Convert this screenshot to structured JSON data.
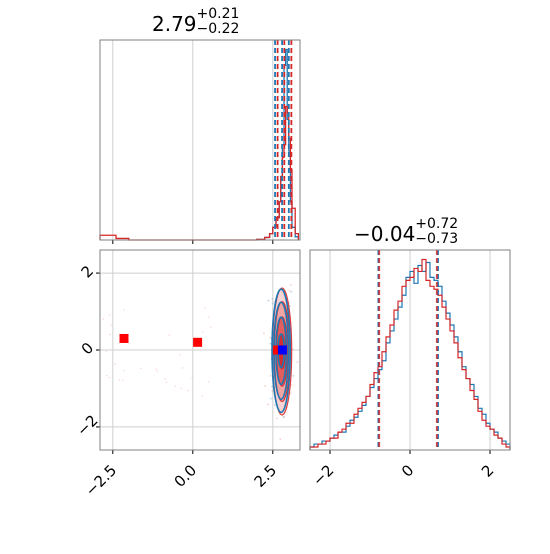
{
  "chart_data": [
    {
      "panel": "marginal-1",
      "type": "histogram",
      "title": "2.79",
      "title_sup": "+0.21",
      "title_sub": "−0.22",
      "xlim": [
        -2.9,
        3.35
      ],
      "x_ticks": [
        -2.5,
        0.0,
        2.5
      ],
      "quantiles_series1": [
        2.57,
        2.79,
        3.0
      ],
      "quantiles_series2": [
        2.65,
        2.86,
        3.08
      ],
      "series": [
        {
          "color": "#1f77b4",
          "bin_edges": [
            2.0,
            2.25,
            2.4,
            2.5,
            2.6,
            2.7,
            2.75,
            2.8,
            2.85,
            2.9,
            2.95,
            3.0,
            3.05,
            3.1,
            3.2,
            3.3
          ],
          "counts": [
            0.2,
            0.8,
            2,
            4,
            7,
            12,
            20,
            30,
            55,
            60,
            38,
            28,
            12,
            4,
            1
          ]
        },
        {
          "color": "#d62728",
          "bin_edges": [
            -2.9,
            -2.4,
            -2.0,
            2.0,
            2.25,
            2.4,
            2.5,
            2.6,
            2.7,
            2.75,
            2.8,
            2.85,
            2.9,
            2.95,
            3.0,
            3.05,
            3.1,
            3.2,
            3.3
          ],
          "counts": [
            1.5,
            0.5,
            0,
            0.2,
            0.8,
            2,
            4,
            7,
            12,
            20,
            26,
            30,
            42,
            40,
            32,
            22,
            10,
            2
          ]
        }
      ]
    },
    {
      "panel": "joint",
      "type": "scatter",
      "xlim": [
        -2.9,
        3.35
      ],
      "ylim": [
        -2.6,
        2.6
      ],
      "x_ticks": [
        -2.5,
        0.0,
        2.5
      ],
      "y_ticks": [
        -2,
        0,
        2
      ],
      "markers": [
        {
          "x": -2.15,
          "y": 0.3,
          "color": "#ff0000"
        },
        {
          "x": 0.15,
          "y": 0.2,
          "color": "#ff0000"
        },
        {
          "x": 2.65,
          "y": 0.0,
          "color": "#ff0000"
        },
        {
          "x": 2.8,
          "y": 0.0,
          "color": "#0000ff"
        }
      ],
      "contour_center": {
        "x": 2.79,
        "y": -0.04
      },
      "contour_levels_sigma_x": [
        0.1,
        0.17,
        0.24,
        0.3
      ],
      "contour_levels_sigma_y": [
        0.45,
        0.9,
        1.3,
        1.65
      ]
    },
    {
      "panel": "marginal-2",
      "type": "histogram",
      "title": "−0.04",
      "title_sup": "+0.72",
      "title_sub": "−0.73",
      "xlim": [
        -2.5,
        2.5
      ],
      "x_ticks": [
        -2,
        0,
        2
      ],
      "quantiles_series1": [
        -0.79,
        0.7
      ],
      "quantiles_series2": [
        -0.77,
        0.67
      ],
      "series": [
        {
          "color": "#1f77b4",
          "bin_start": -2.5,
          "bin_width": 0.1,
          "counts": [
            1,
            2,
            2,
            3,
            3,
            4,
            5,
            6,
            6,
            8,
            10,
            11,
            13,
            15,
            18,
            21,
            24,
            27,
            30,
            36,
            40,
            44,
            48,
            52,
            58,
            60,
            56,
            62,
            60,
            63,
            58,
            57,
            55,
            50,
            46,
            42,
            38,
            33,
            28,
            24,
            22,
            18,
            14,
            12,
            9,
            7,
            6,
            4,
            3,
            2
          ]
        },
        {
          "color": "#d62728",
          "bin_start": -2.5,
          "bin_width": 0.1,
          "counts": [
            1,
            1,
            2,
            2,
            3,
            4,
            4,
            6,
            7,
            9,
            9,
            12,
            14,
            16,
            18,
            22,
            26,
            28,
            33,
            38,
            42,
            47,
            50,
            55,
            57,
            58,
            61,
            60,
            64,
            57,
            55,
            54,
            52,
            48,
            44,
            40,
            36,
            31,
            27,
            24,
            20,
            17,
            13,
            10,
            8,
            7,
            5,
            4,
            2,
            1
          ]
        }
      ]
    }
  ]
}
